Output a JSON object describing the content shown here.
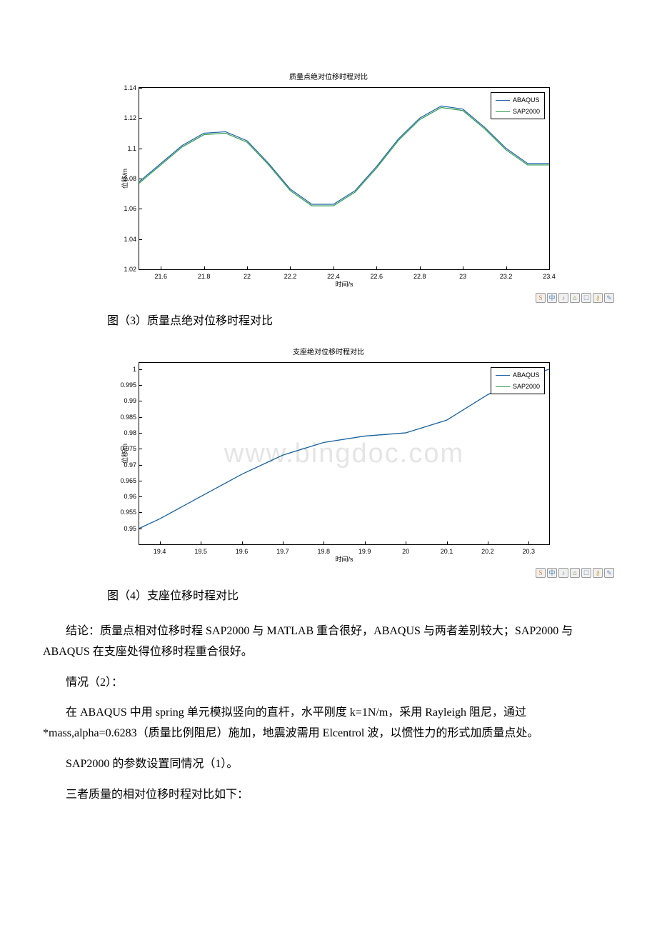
{
  "chart1": {
    "title": "质量点绝对位移时程对比",
    "ylabel": "位移/m",
    "xlabel": "时间/s",
    "ylim": [
      1.02,
      1.14
    ],
    "ytick_step": 0.02,
    "yticks": [
      "1.02",
      "1.04",
      "1.06",
      "1.08",
      "1.1",
      "1.12",
      "1.14"
    ],
    "xlim": [
      21.5,
      23.4
    ],
    "xticks": [
      "21.6",
      "21.8",
      "22",
      "22.2",
      "22.4",
      "22.6",
      "22.8",
      "23",
      "23.2",
      "23.4"
    ],
    "xtick_positions": [
      21.6,
      21.8,
      22,
      22.2,
      22.4,
      22.6,
      22.8,
      23,
      23.2,
      23.4
    ],
    "legend": [
      "ABAQUS",
      "SAP2000"
    ],
    "legend_colors": [
      "#1e5fa8",
      "#2e9c4e"
    ],
    "series1_color": "#1e5fa8",
    "series2_color": "#2e9c4e",
    "background_color": "#ffffff",
    "series1": [
      [
        21.5,
        1.078
      ],
      [
        21.6,
        1.09
      ],
      [
        21.7,
        1.102
      ],
      [
        21.8,
        1.11
      ],
      [
        21.9,
        1.111
      ],
      [
        22.0,
        1.105
      ],
      [
        22.1,
        1.09
      ],
      [
        22.2,
        1.073
      ],
      [
        22.3,
        1.063
      ],
      [
        22.4,
        1.063
      ],
      [
        22.5,
        1.072
      ],
      [
        22.6,
        1.088
      ],
      [
        22.7,
        1.106
      ],
      [
        22.8,
        1.12
      ],
      [
        22.9,
        1.128
      ],
      [
        23.0,
        1.126
      ],
      [
        23.1,
        1.114
      ],
      [
        23.2,
        1.1
      ],
      [
        23.3,
        1.09
      ],
      [
        23.4,
        1.09
      ]
    ],
    "series2": [
      [
        21.5,
        1.077
      ],
      [
        21.6,
        1.089
      ],
      [
        21.7,
        1.101
      ],
      [
        21.8,
        1.109
      ],
      [
        21.9,
        1.11
      ],
      [
        22.0,
        1.104
      ],
      [
        22.1,
        1.089
      ],
      [
        22.2,
        1.072
      ],
      [
        22.3,
        1.062
      ],
      [
        22.4,
        1.062
      ],
      [
        22.5,
        1.071
      ],
      [
        22.6,
        1.087
      ],
      [
        22.7,
        1.105
      ],
      [
        22.8,
        1.119
      ],
      [
        22.9,
        1.127
      ],
      [
        23.0,
        1.125
      ],
      [
        23.1,
        1.113
      ],
      [
        23.2,
        1.099
      ],
      [
        23.3,
        1.089
      ],
      [
        23.4,
        1.089
      ]
    ]
  },
  "caption1": "图（3）质量点绝对位移时程对比",
  "chart2": {
    "title": "支座绝对位移时程对比",
    "ylabel": "位移/m",
    "xlabel": "时间/s",
    "ylim": [
      0.945,
      1.002
    ],
    "yticks": [
      "0.95",
      "0.955",
      "0.96",
      "0.965",
      "0.97",
      "0.975",
      "0.98",
      "0.985",
      "0.99",
      "0.995",
      "1"
    ],
    "ytick_positions": [
      0.95,
      0.955,
      0.96,
      0.965,
      0.97,
      0.975,
      0.98,
      0.985,
      0.99,
      0.995,
      1.0
    ],
    "xlim": [
      19.35,
      20.35
    ],
    "xticks": [
      "19.4",
      "19.5",
      "19.6",
      "19.7",
      "19.8",
      "19.9",
      "20",
      "20.1",
      "20.2",
      "20.3"
    ],
    "xtick_positions": [
      19.4,
      19.5,
      19.6,
      19.7,
      19.8,
      19.9,
      20,
      20.1,
      20.2,
      20.3
    ],
    "legend": [
      "ABAQUS",
      "SAP2000"
    ],
    "legend_colors": [
      "#1e5fa8",
      "#2e9c4e"
    ],
    "series1_color": "#1e5fa8",
    "series2_color": "#2e9c4e",
    "background_color": "#ffffff",
    "watermark": "www.bingdoc.com",
    "series1": [
      [
        19.35,
        0.95
      ],
      [
        19.4,
        0.953
      ],
      [
        19.5,
        0.96
      ],
      [
        19.6,
        0.967
      ],
      [
        19.7,
        0.973
      ],
      [
        19.8,
        0.977
      ],
      [
        19.9,
        0.979
      ],
      [
        20.0,
        0.98
      ],
      [
        20.1,
        0.984
      ],
      [
        20.2,
        0.992
      ],
      [
        20.3,
        0.998
      ],
      [
        20.35,
        1.0
      ]
    ],
    "series2": [
      [
        19.35,
        0.95
      ],
      [
        19.4,
        0.953
      ],
      [
        19.5,
        0.96
      ],
      [
        19.6,
        0.967
      ],
      [
        19.7,
        0.973
      ],
      [
        19.8,
        0.977
      ],
      [
        19.9,
        0.979
      ],
      [
        20.0,
        0.98
      ],
      [
        20.1,
        0.984
      ],
      [
        20.2,
        0.992
      ],
      [
        20.3,
        0.998
      ],
      [
        20.35,
        1.0
      ]
    ]
  },
  "caption2": "图（4）支座位移时程对比",
  "para1": "结论：质量点相对位移时程 SAP2000 与 MATLAB 重合很好，ABAQUS 与两者差别较大；SAP2000 与 ABAQUS 在支座处得位移时程重合很好。",
  "para2": "情况（2）：",
  "para3": "在 ABAQUS 中用 spring 单元模拟竖向的直杆，水平刚度 k=1N/m，采用 Rayleigh 阻尼，通过*mass,alpha=0.6283（质量比例阻尼）施加，地震波需用 Elcentrol 波，以惯性力的形式加质量点处。",
  "para4": "SAP2000 的参数设置同情况（1）。",
  "para5": "三者质量的相对位移时程对比如下：",
  "badges": {
    "items": [
      "S",
      "中",
      "♪",
      "⌂",
      "☐",
      "⚷",
      "✎"
    ],
    "colors": [
      "#f08030",
      "#4a7bc0",
      "#888",
      "#5a8a3a",
      "#7aa0c8",
      "#d0a030",
      "#6a8bc0"
    ]
  }
}
